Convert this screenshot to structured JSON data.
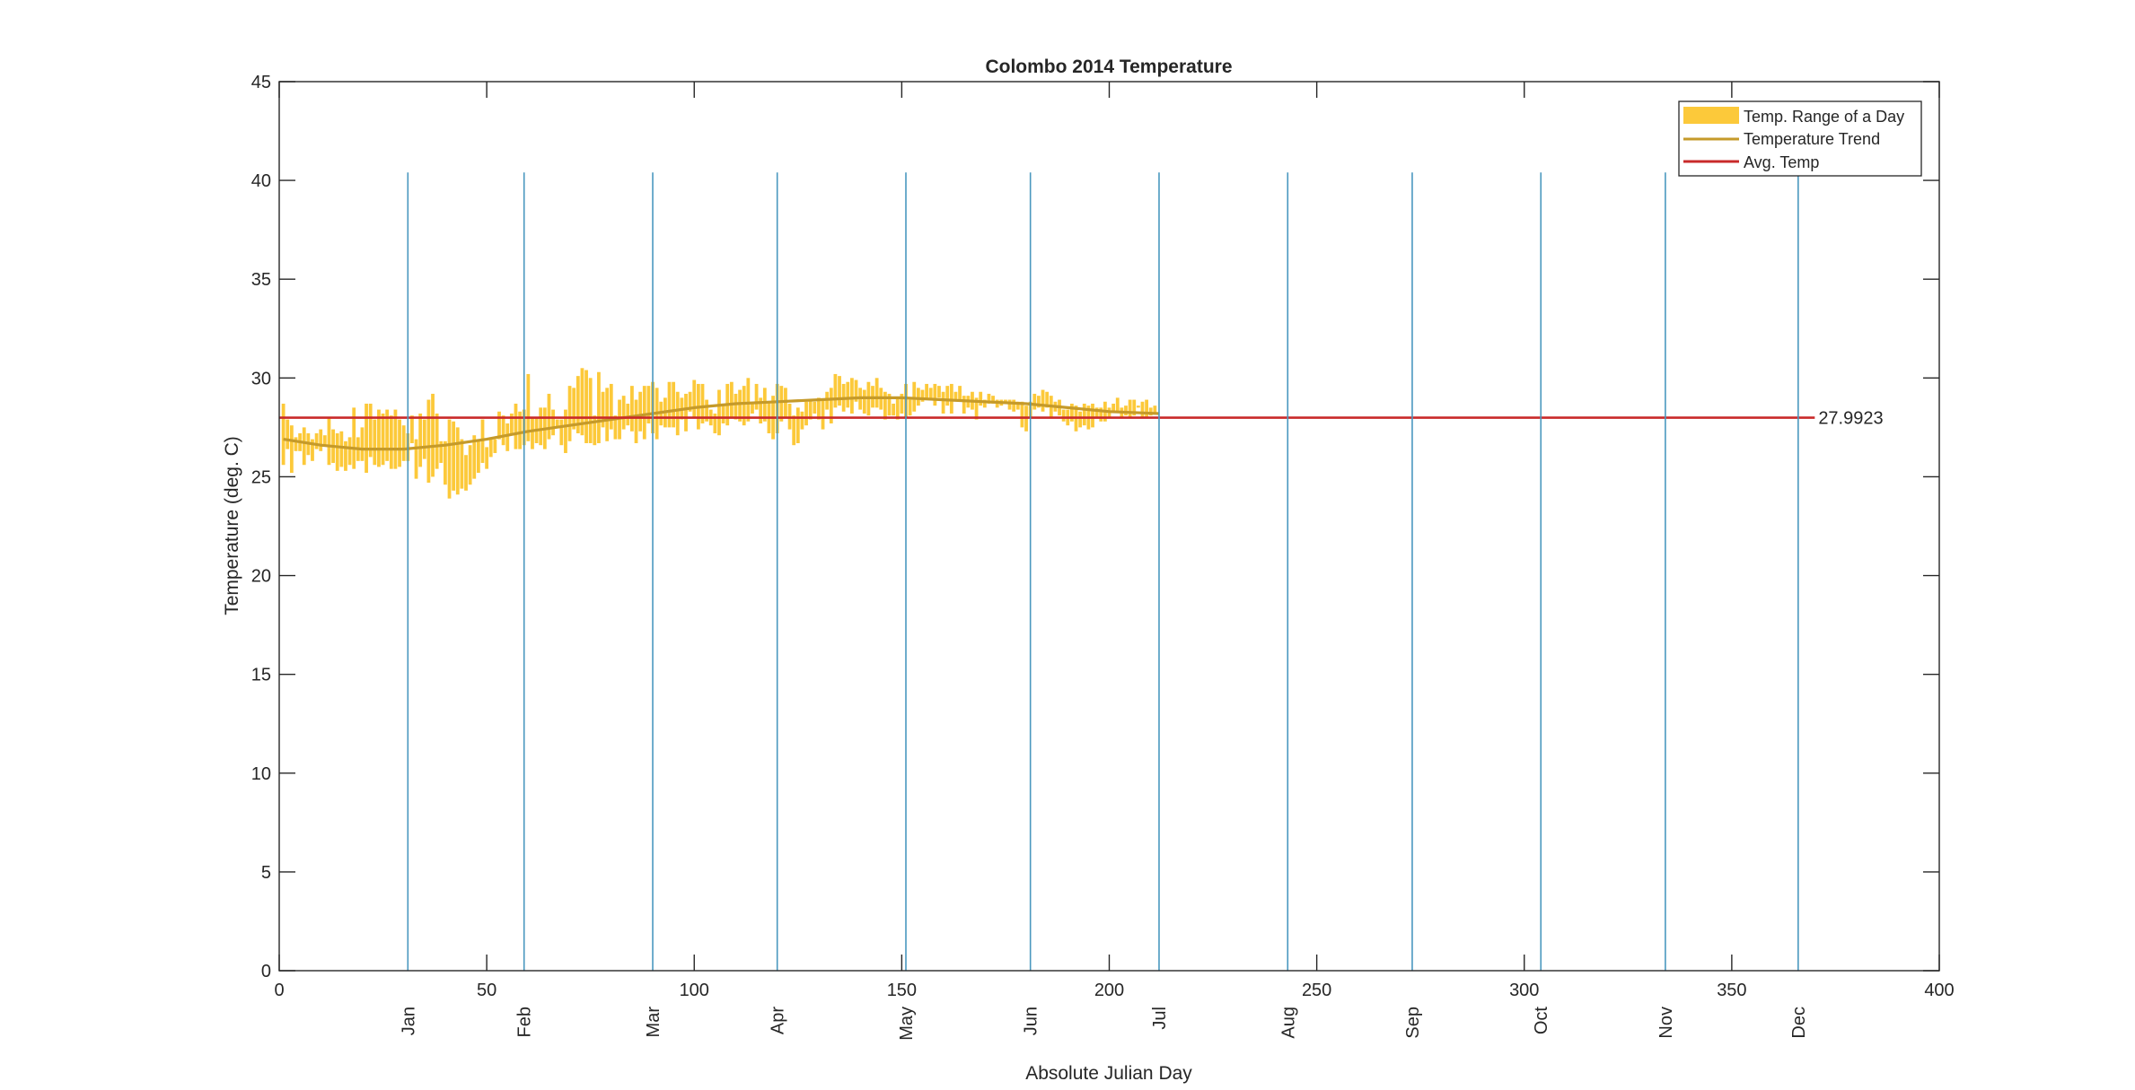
{
  "chart_data": {
    "type": "bar",
    "title": "Colombo 2014 Temperature",
    "xlabel": "Absolute Julian Day",
    "ylabel": "Temperature (deg. C)",
    "xlim": [
      0,
      400
    ],
    "ylim": [
      0,
      45
    ],
    "xticks": [
      0,
      50,
      100,
      150,
      200,
      250,
      300,
      350,
      400
    ],
    "yticks": [
      0,
      5,
      10,
      15,
      20,
      25,
      30,
      35,
      40,
      45
    ],
    "grid": false,
    "legend_position": "top-right",
    "legend": [
      "Temp. Range of a Day",
      "Temperature Trend",
      "Avg. Temp"
    ],
    "colors": {
      "range": "#fcc93a",
      "trend": "#c59a2a",
      "avg": "#c92a2a",
      "month": "#4a98bf",
      "axes": "#262626"
    },
    "month_markers": {
      "labels": [
        "Jan",
        "Feb",
        "Mar",
        "Apr",
        "May",
        "Jun",
        "Jul",
        "Aug",
        "Sep",
        "Oct",
        "Nov",
        "Dec"
      ],
      "days": [
        31,
        59,
        90,
        120,
        151,
        181,
        212,
        243,
        273,
        304,
        334,
        366
      ],
      "y_top": 40.4
    },
    "avg_temp": {
      "value": 27.9923,
      "label": "27.9923",
      "x_range": [
        0,
        370
      ]
    },
    "trend": {
      "x": [
        1,
        10,
        20,
        30,
        40,
        50,
        60,
        70,
        80,
        90,
        100,
        110,
        120,
        130,
        140,
        150,
        160,
        170,
        180,
        190,
        200,
        212
      ],
      "y": [
        26.9,
        26.6,
        26.4,
        26.4,
        26.6,
        26.9,
        27.3,
        27.6,
        27.9,
        28.2,
        28.5,
        28.7,
        28.8,
        28.9,
        29.0,
        29.0,
        28.9,
        28.8,
        28.7,
        28.5,
        28.3,
        28.2
      ]
    },
    "daily_range": {
      "x_start": 1,
      "ranges": [
        [
          25.6,
          28.7
        ],
        [
          26.4,
          27.9
        ],
        [
          25.2,
          27.6
        ],
        [
          26.3,
          27.0
        ],
        [
          26.3,
          27.2
        ],
        [
          25.6,
          27.5
        ],
        [
          26.1,
          27.2
        ],
        [
          25.8,
          26.9
        ],
        [
          26.4,
          27.2
        ],
        [
          26.3,
          27.4
        ],
        [
          26.6,
          27.1
        ],
        [
          25.6,
          28.0
        ],
        [
          25.7,
          27.4
        ],
        [
          25.3,
          27.2
        ],
        [
          25.5,
          27.3
        ],
        [
          25.3,
          26.8
        ],
        [
          25.6,
          27.0
        ],
        [
          25.4,
          28.5
        ],
        [
          25.8,
          27.0
        ],
        [
          25.8,
          27.5
        ],
        [
          25.2,
          28.7
        ],
        [
          26.0,
          28.7
        ],
        [
          25.6,
          27.9
        ],
        [
          25.5,
          28.4
        ],
        [
          25.6,
          28.2
        ],
        [
          25.8,
          28.4
        ],
        [
          25.4,
          28.1
        ],
        [
          25.4,
          28.4
        ],
        [
          25.5,
          27.9
        ],
        [
          25.8,
          27.6
        ],
        [
          25.8,
          27.2
        ],
        [
          26.7,
          28.1
        ],
        [
          24.9,
          26.9
        ],
        [
          25.5,
          28.2
        ],
        [
          25.9,
          27.9
        ],
        [
          24.7,
          28.9
        ],
        [
          25.0,
          29.2
        ],
        [
          25.4,
          28.2
        ],
        [
          25.7,
          26.8
        ],
        [
          24.6,
          26.8
        ],
        [
          23.9,
          27.9
        ],
        [
          24.3,
          27.8
        ],
        [
          24.1,
          27.5
        ],
        [
          24.4,
          26.9
        ],
        [
          24.3,
          26.1
        ],
        [
          24.6,
          26.6
        ],
        [
          24.9,
          27.1
        ],
        [
          25.2,
          26.9
        ],
        [
          25.7,
          27.9
        ],
        [
          25.4,
          26.5
        ],
        [
          26.0,
          27.0
        ],
        [
          26.2,
          26.9
        ],
        [
          26.9,
          28.3
        ],
        [
          26.6,
          28.1
        ],
        [
          26.3,
          27.7
        ],
        [
          27.1,
          28.2
        ],
        [
          26.4,
          28.7
        ],
        [
          26.4,
          28.3
        ],
        [
          26.6,
          28.4
        ],
        [
          26.8,
          30.2
        ],
        [
          26.4,
          28.0
        ],
        [
          26.7,
          28.0
        ],
        [
          26.6,
          28.5
        ],
        [
          26.4,
          28.5
        ],
        [
          26.9,
          29.2
        ],
        [
          27.1,
          28.4
        ],
        [
          27.5,
          27.9
        ],
        [
          26.6,
          27.9
        ],
        [
          26.2,
          28.4
        ],
        [
          26.8,
          29.6
        ],
        [
          27.4,
          29.5
        ],
        [
          27.2,
          30.1
        ],
        [
          27.1,
          30.5
        ],
        [
          26.7,
          30.4
        ],
        [
          26.7,
          30.0
        ],
        [
          26.6,
          28.1
        ],
        [
          26.7,
          30.3
        ],
        [
          27.5,
          29.3
        ],
        [
          26.8,
          29.5
        ],
        [
          27.4,
          29.7
        ],
        [
          26.9,
          28.1
        ],
        [
          26.9,
          28.9
        ],
        [
          27.4,
          29.1
        ],
        [
          27.6,
          28.7
        ],
        [
          27.3,
          29.6
        ],
        [
          26.7,
          28.9
        ],
        [
          27.3,
          29.3
        ],
        [
          26.9,
          29.6
        ],
        [
          27.7,
          29.6
        ],
        [
          27.2,
          29.8
        ],
        [
          26.9,
          29.5
        ],
        [
          27.6,
          28.8
        ],
        [
          27.5,
          29.0
        ],
        [
          27.5,
          29.8
        ],
        [
          27.5,
          29.8
        ],
        [
          27.1,
          29.3
        ],
        [
          27.9,
          29.0
        ],
        [
          27.3,
          29.2
        ],
        [
          28.3,
          29.3
        ],
        [
          28.0,
          29.9
        ],
        [
          27.4,
          29.7
        ],
        [
          27.7,
          29.7
        ],
        [
          27.8,
          28.9
        ],
        [
          27.6,
          28.4
        ],
        [
          27.2,
          28.2
        ],
        [
          27.1,
          29.4
        ],
        [
          27.7,
          28.7
        ],
        [
          27.6,
          29.7
        ],
        [
          28.0,
          29.8
        ],
        [
          27.9,
          29.2
        ],
        [
          27.8,
          29.4
        ],
        [
          27.6,
          29.6
        ],
        [
          27.8,
          30.0
        ],
        [
          28.2,
          28.7
        ],
        [
          28.4,
          29.7
        ],
        [
          27.7,
          29.0
        ],
        [
          27.8,
          29.5
        ],
        [
          27.2,
          28.8
        ],
        [
          26.9,
          29.1
        ],
        [
          27.2,
          29.7
        ],
        [
          27.8,
          29.6
        ],
        [
          28.0,
          29.5
        ],
        [
          27.4,
          28.7
        ],
        [
          26.6,
          28.1
        ],
        [
          26.7,
          28.5
        ],
        [
          27.4,
          28.3
        ],
        [
          27.6,
          28.8
        ],
        [
          27.9,
          28.9
        ],
        [
          28.2,
          28.8
        ],
        [
          27.9,
          29.0
        ],
        [
          27.4,
          28.9
        ],
        [
          28.4,
          29.3
        ],
        [
          27.7,
          29.5
        ],
        [
          28.5,
          30.2
        ],
        [
          28.6,
          30.1
        ],
        [
          28.3,
          29.7
        ],
        [
          28.5,
          29.8
        ],
        [
          28.2,
          30.0
        ],
        [
          28.8,
          29.9
        ],
        [
          28.4,
          29.5
        ],
        [
          28.2,
          29.4
        ],
        [
          28.1,
          29.8
        ],
        [
          28.5,
          29.6
        ],
        [
          28.5,
          30.0
        ],
        [
          28.4,
          29.5
        ],
        [
          27.9,
          29.3
        ],
        [
          28.1,
          29.2
        ],
        [
          28.1,
          28.7
        ],
        [
          27.9,
          29.0
        ],
        [
          28.2,
          29.2
        ],
        [
          28.0,
          29.7
        ],
        [
          28.1,
          28.9
        ],
        [
          28.3,
          29.8
        ],
        [
          28.6,
          29.5
        ],
        [
          28.8,
          29.4
        ],
        [
          28.9,
          29.7
        ],
        [
          28.9,
          29.5
        ],
        [
          28.6,
          29.7
        ],
        [
          29.0,
          29.6
        ],
        [
          28.2,
          29.3
        ],
        [
          28.6,
          29.6
        ],
        [
          28.2,
          29.7
        ],
        [
          28.9,
          29.3
        ],
        [
          28.8,
          29.6
        ],
        [
          28.2,
          29.1
        ],
        [
          28.5,
          29.1
        ],
        [
          28.4,
          29.3
        ],
        [
          27.9,
          29.0
        ],
        [
          28.6,
          29.3
        ],
        [
          28.5,
          28.9
        ],
        [
          28.7,
          29.2
        ],
        [
          28.7,
          29.1
        ],
        [
          28.5,
          28.9
        ],
        [
          28.6,
          28.9
        ],
        [
          28.7,
          28.9
        ],
        [
          28.4,
          28.9
        ],
        [
          28.3,
          28.9
        ],
        [
          28.4,
          28.8
        ],
        [
          27.5,
          28.8
        ],
        [
          27.3,
          28.6
        ],
        [
          28.0,
          28.8
        ],
        [
          28.4,
          29.2
        ],
        [
          28.5,
          29.1
        ],
        [
          28.3,
          29.4
        ],
        [
          28.5,
          29.3
        ],
        [
          28.0,
          29.1
        ],
        [
          28.3,
          28.8
        ],
        [
          28.1,
          28.9
        ],
        [
          27.8,
          28.4
        ],
        [
          27.6,
          28.4
        ],
        [
          27.8,
          28.7
        ],
        [
          27.3,
          28.6
        ],
        [
          27.5,
          28.3
        ],
        [
          27.6,
          28.7
        ],
        [
          27.4,
          28.6
        ],
        [
          27.5,
          28.7
        ],
        [
          28.0,
          28.5
        ],
        [
          27.8,
          28.5
        ],
        [
          27.8,
          28.8
        ],
        [
          28.0,
          28.5
        ],
        [
          28.3,
          28.7
        ],
        [
          28.3,
          29.0
        ],
        [
          28.0,
          28.5
        ],
        [
          28.1,
          28.6
        ],
        [
          28.0,
          28.9
        ],
        [
          28.1,
          28.9
        ],
        [
          28.5,
          28.6
        ],
        [
          28.0,
          28.8
        ],
        [
          28.0,
          28.9
        ],
        [
          28.1,
          28.5
        ],
        [
          28.2,
          28.6
        ]
      ]
    }
  }
}
